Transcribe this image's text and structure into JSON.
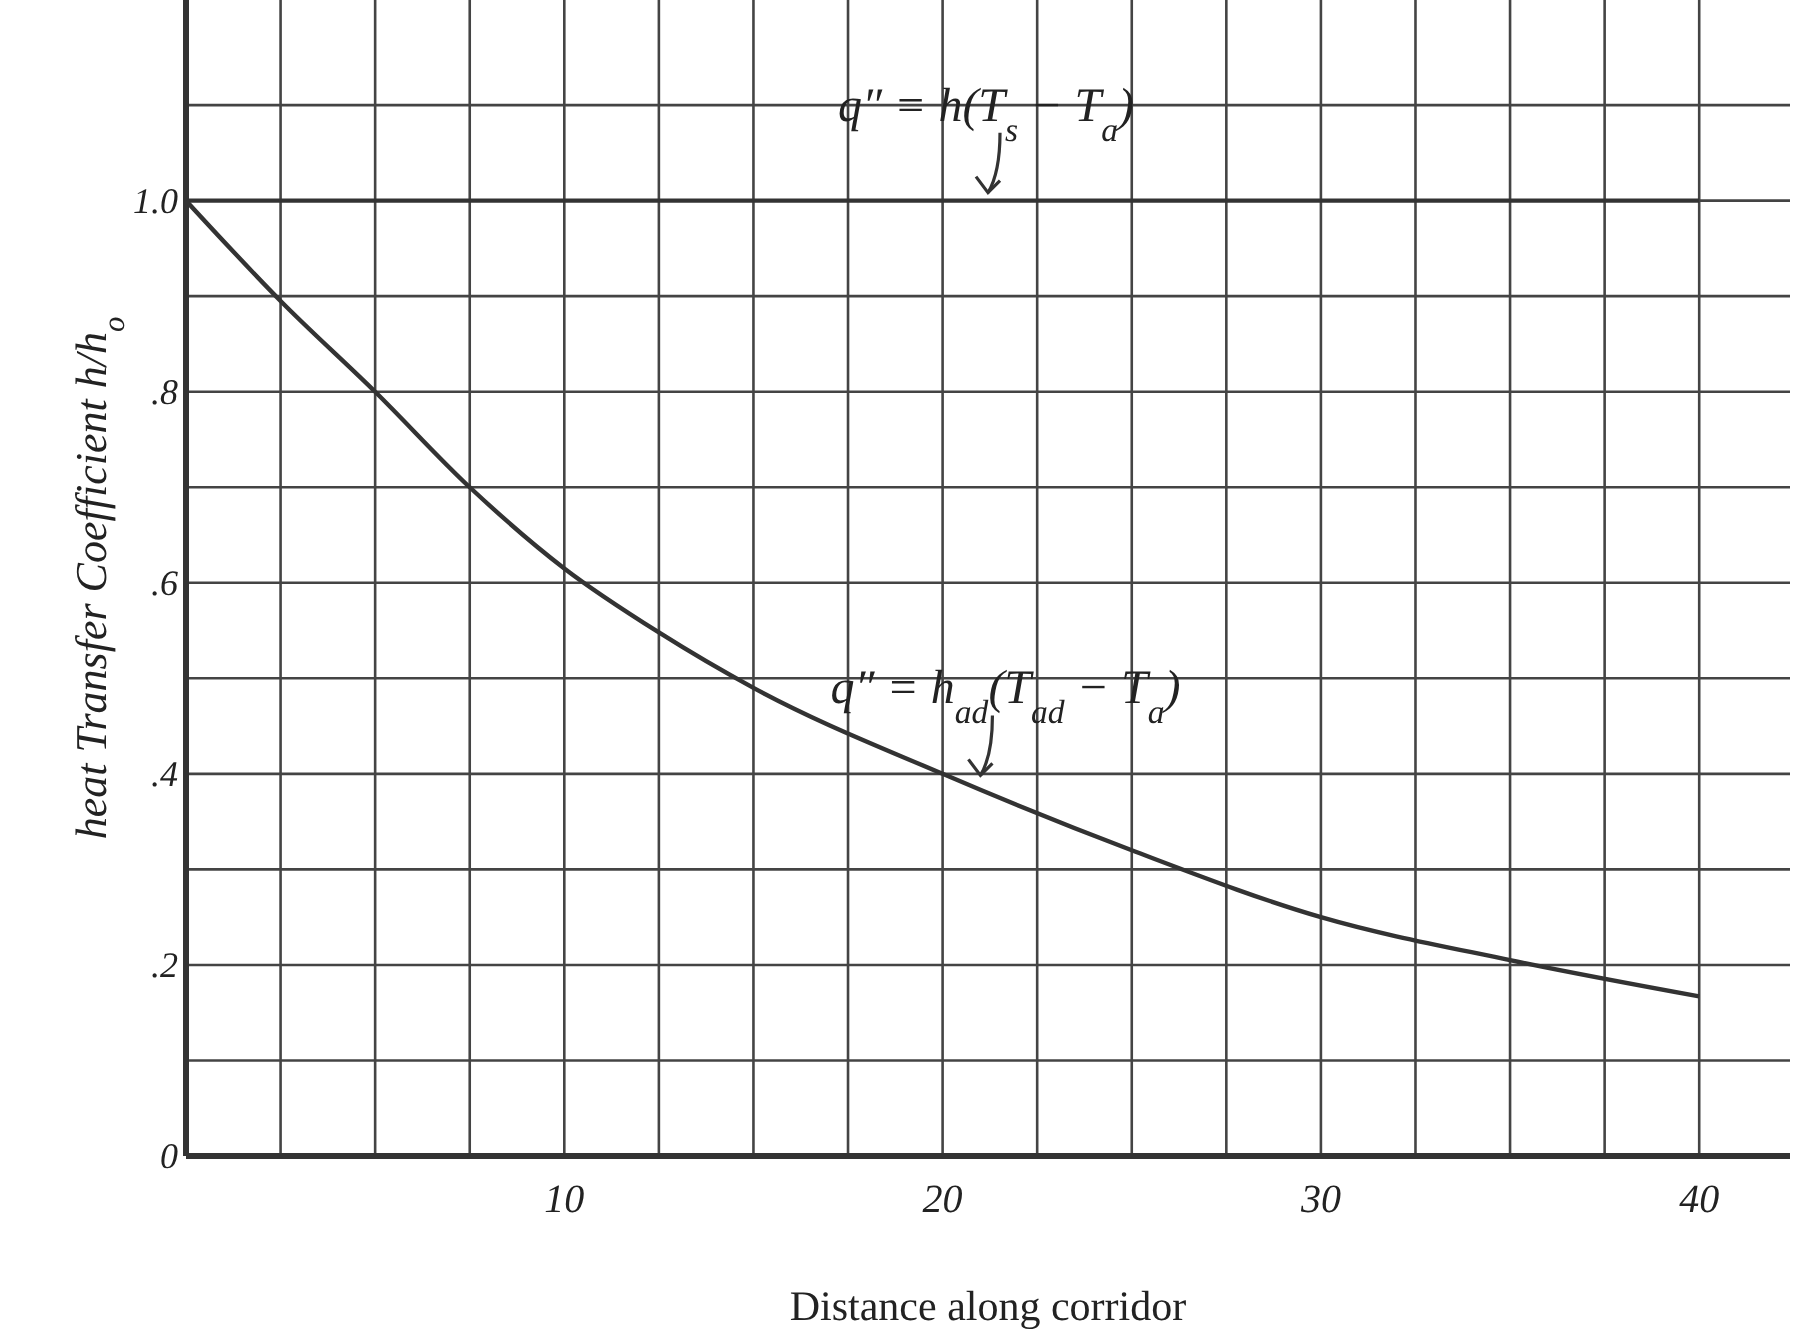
{
  "chart_data": {
    "type": "line",
    "xlabel": "Distance along corridor",
    "ylabel": "heat Transfer Coefficient h/h$_{o}$",
    "xlim": [
      0,
      42.4
    ],
    "ylim": [
      0,
      1.21
    ],
    "xticks": [
      {
        "value": 2.5,
        "label": null
      },
      {
        "value": 5,
        "label": null
      },
      {
        "value": 7.5,
        "label": null
      },
      10,
      {
        "value": 12.5,
        "label": null
      },
      {
        "value": 15,
        "label": null
      },
      {
        "value": 17.5,
        "label": null
      },
      20,
      {
        "value": 22.5,
        "label": null
      },
      {
        "value": 25,
        "label": null
      },
      {
        "value": 27.5,
        "label": null
      },
      30,
      {
        "value": 32.5,
        "label": null
      },
      {
        "value": 35,
        "label": null
      },
      {
        "value": 37.5,
        "label": null
      },
      40
    ],
    "yticks": [
      0,
      {
        "value": 0.1,
        "label": null
      },
      {
        "value": 0.2,
        "label": ".2"
      },
      {
        "value": 0.3,
        "label": null
      },
      {
        "value": 0.4,
        "label": ".4"
      },
      {
        "value": 0.5,
        "label": null
      },
      {
        "value": 0.6,
        "label": ".6"
      },
      {
        "value": 0.7,
        "label": null
      },
      {
        "value": 0.8,
        "label": ".8"
      },
      {
        "value": 0.9,
        "label": null
      },
      {
        "value": 1.0,
        "label": "1.0"
      },
      {
        "value": 1.1,
        "label": null
      }
    ],
    "grid": true,
    "marker": "none",
    "line_style": "solid",
    "series": [
      {
        "color": "#333333",
        "x": [
          0,
          40
        ],
        "values": [
          1.0,
          1.0
        ]
      },
      {
        "color": "#333333",
        "x": [
          0,
          2.5,
          5,
          7.5,
          10,
          12.5,
          15,
          20,
          25,
          30,
          35,
          40
        ],
        "values": [
          1.0,
          0.895,
          0.8,
          0.7,
          0.615,
          0.548,
          0.49,
          0.4,
          0.32,
          0.25,
          0.205,
          0.167
        ]
      }
    ],
    "annotations": [
      {
        "text": "q″ = h(T$_{s}$ − T$_{a}$)",
        "x": 21.2,
        "y": 1.0
      },
      {
        "text": "q″ = h$_{ad}$(T$_{ad}$ − T$_{a}$)",
        "x": 21,
        "y": 0.39
      }
    ]
  }
}
